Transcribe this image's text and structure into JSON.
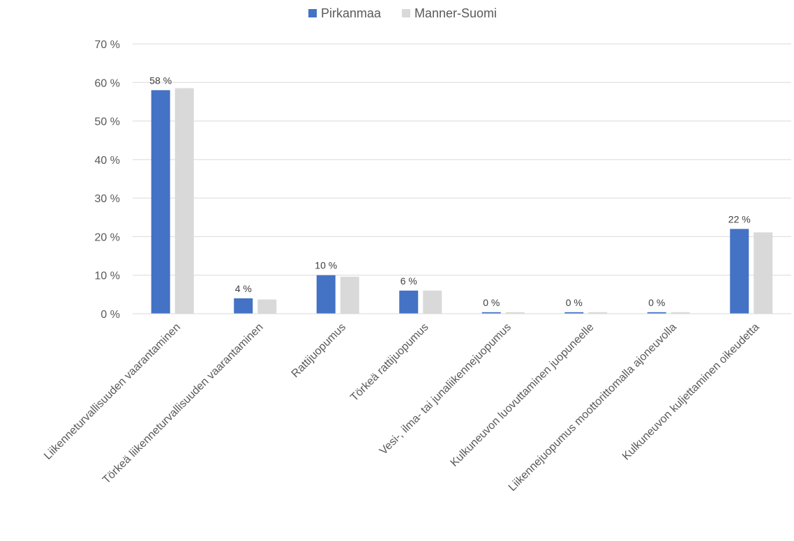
{
  "chart_data": {
    "type": "bar",
    "title": "",
    "xlabel": "",
    "ylabel": "",
    "ylim": [
      0,
      70
    ],
    "y_ticks": [
      "0 %",
      "10 %",
      "20 %",
      "30 %",
      "40 %",
      "50 %",
      "60 %",
      "70 %"
    ],
    "grid": true,
    "legend_position": "top-center",
    "categories": [
      "Liikenneturvallisuuden vaarantaminen",
      "Törkeä liikenneturvallisuuden vaarantaminen",
      "Rattijuopumus",
      "Törkeä rattijuopumus",
      "Vesi-, ilma- tai junaliikennejuopumus",
      "Kulkuneuvon luovuttaminen juopuneelle",
      "Liikennejuopumus moottorittomalla ajoneuvolla",
      "Kulkuneuvon kuljettaminen oikeudetta"
    ],
    "series": [
      {
        "name": "Pirkanmaa",
        "color": "#4472C4",
        "values": [
          58,
          4,
          10,
          6,
          0.4,
          0.4,
          0.4,
          22
        ],
        "data_labels": [
          "58 %",
          "4 %",
          "10 %",
          "6 %",
          "0 %",
          "0 %",
          "0 %",
          "22 %"
        ]
      },
      {
        "name": "Manner-Suomi",
        "color": "#D9D9D9",
        "values": [
          58.5,
          3.7,
          9.6,
          6.0,
          0.4,
          0.4,
          0.4,
          21.1
        ]
      }
    ]
  }
}
